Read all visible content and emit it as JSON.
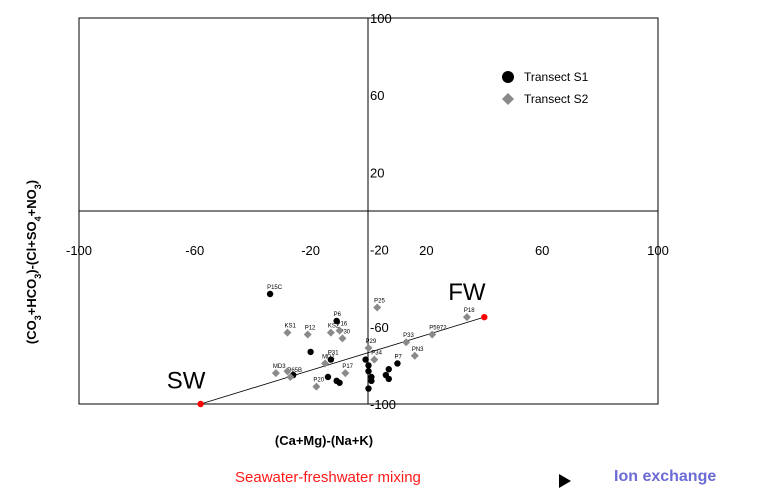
{
  "chart_data": {
    "type": "scatter",
    "title": "",
    "xlabel": "(Ca+Mg)-(Na+K)",
    "ylabel": "(CO3+HCO3)-(Cl+SO4+NO3)",
    "xlim": [
      -100,
      100
    ],
    "ylim": [
      -100,
      100
    ],
    "x_ticks": [
      -100,
      -60,
      -20,
      20,
      60,
      100
    ],
    "y_ticks_upper": [
      100,
      60,
      20
    ],
    "y_ticks_lower": [
      -20,
      -60,
      -100
    ],
    "grid": false,
    "legend_position": "top-right",
    "series": [
      {
        "name": "Transect S1",
        "marker": "circle",
        "color": "#000000",
        "points": [
          {
            "x": -34,
            "y": -43,
            "label": "P15C"
          },
          {
            "x": -11,
            "y": -57,
            "label": "P6"
          },
          {
            "x": -20,
            "y": -73,
            "label": ""
          },
          {
            "x": -13,
            "y": -77,
            "label": "P31"
          },
          {
            "x": -26,
            "y": -85,
            "label": ""
          },
          {
            "x": -14,
            "y": -86,
            "label": ""
          },
          {
            "x": -11,
            "y": -88,
            "label": ""
          },
          {
            "x": -10,
            "y": -89,
            "label": ""
          },
          {
            "x": -1,
            "y": -77,
            "label": ""
          },
          {
            "x": 0,
            "y": -80,
            "label": ""
          },
          {
            "x": 0,
            "y": -83,
            "label": ""
          },
          {
            "x": 1,
            "y": -86,
            "label": ""
          },
          {
            "x": 0,
            "y": -92,
            "label": ""
          },
          {
            "x": 10,
            "y": -79,
            "label": "P7"
          },
          {
            "x": 7,
            "y": -82,
            "label": ""
          },
          {
            "x": 6,
            "y": -85,
            "label": ""
          },
          {
            "x": 7,
            "y": -87,
            "label": ""
          },
          {
            "x": 1,
            "y": -88,
            "label": ""
          }
        ]
      },
      {
        "name": "Transect S2",
        "marker": "diamond",
        "color": "#8a8a8a",
        "points": [
          {
            "x": 3,
            "y": -50,
            "label": "P25"
          },
          {
            "x": 34,
            "y": -55,
            "label": "P18"
          },
          {
            "x": -28,
            "y": -63,
            "label": "KS1"
          },
          {
            "x": -21,
            "y": -64,
            "label": "P12"
          },
          {
            "x": -13,
            "y": -63,
            "label": "KS2"
          },
          {
            "x": -9,
            "y": -66,
            "label": "P30"
          },
          {
            "x": -10,
            "y": -62,
            "label": "P16"
          },
          {
            "x": 0,
            "y": -71,
            "label": "P29"
          },
          {
            "x": 13,
            "y": -68,
            "label": "P33"
          },
          {
            "x": 22,
            "y": -64,
            "label": "P5972"
          },
          {
            "x": 16,
            "y": -75,
            "label": "PN3"
          },
          {
            "x": -32,
            "y": -84,
            "label": "MD3"
          },
          {
            "x": -27,
            "y": -86,
            "label": "P65B"
          },
          {
            "x": -28,
            "y": -83,
            "label": ""
          },
          {
            "x": -18,
            "y": -91,
            "label": "P20"
          },
          {
            "x": -8,
            "y": -84,
            "label": "P17"
          },
          {
            "x": -15,
            "y": -79,
            "label": "MD1"
          },
          {
            "x": 2,
            "y": -77,
            "label": "P34"
          }
        ]
      }
    ],
    "mixing_line": {
      "from": {
        "x": -58,
        "y": -100
      },
      "to": {
        "x": 40,
        "y": -55
      },
      "color": "#ff0000"
    },
    "annotations": [
      {
        "text": "SW",
        "x": -63,
        "y": -92
      },
      {
        "text": "FW",
        "x": 34,
        "y": -46
      }
    ],
    "captions": {
      "left": "Seawater-freshwater mixing",
      "right": "Ion exchange"
    }
  }
}
